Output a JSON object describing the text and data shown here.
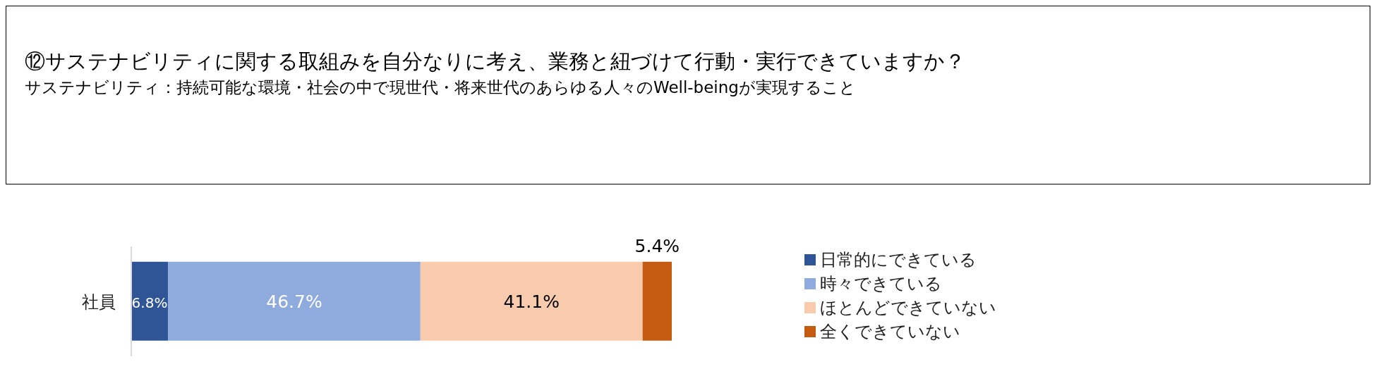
{
  "chart_data": {
    "type": "bar",
    "orientation": "horizontal",
    "stacked": true,
    "title": "⑫サステナビリティに関する取組みを自分なりに考え、業務と紐づけて行動・実行できていますか？",
    "subtitle": "サステナビリティ：持続可能な環境・社会の中で現世代・将来世代のあらゆる人々のWell-beingが実現すること",
    "categories": [
      "社員"
    ],
    "series": [
      {
        "name": "日常的にできている",
        "color": "#2f5597",
        "values": [
          6.8
        ],
        "value_labels": [
          "6.8%"
        ]
      },
      {
        "name": "時々できている",
        "color": "#8faadc",
        "values": [
          46.7
        ],
        "value_labels": [
          "46.7%"
        ]
      },
      {
        "name": "ほとんどできていない",
        "color": "#f8cbad",
        "values": [
          41.1
        ],
        "value_labels": [
          "41.1%"
        ]
      },
      {
        "name": "全くできていない",
        "color": "#c55a11",
        "values": [
          5.4
        ],
        "value_labels": [
          "5.4%"
        ]
      }
    ],
    "legend": "right",
    "grid": false
  }
}
